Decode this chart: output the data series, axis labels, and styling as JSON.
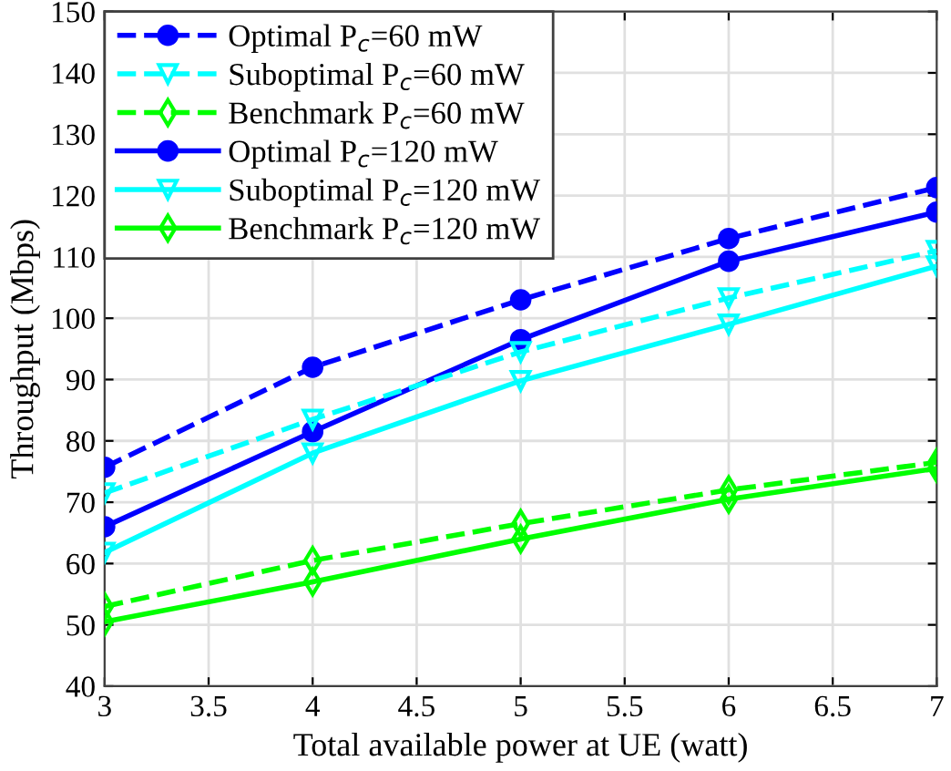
{
  "chart_data": {
    "type": "line",
    "xlabel": "Total available power at UE (watt)",
    "ylabel": "Throughput (Mbps)",
    "x": [
      3,
      4,
      5,
      6,
      7
    ],
    "xlim": [
      3,
      7
    ],
    "xticks": [
      3,
      3.5,
      4,
      4.5,
      5,
      5.5,
      6,
      6.5,
      7
    ],
    "ylim": [
      40,
      150
    ],
    "yticks": [
      40,
      50,
      60,
      70,
      80,
      90,
      100,
      110,
      120,
      130,
      140,
      150
    ],
    "grid": true,
    "legend": "top left",
    "series": [
      {
        "name": "Optimal P$_{c}$=60 mW",
        "color": "#0000ff",
        "values": [
          75.7,
          92,
          103,
          113,
          121.3
        ],
        "marker": "circle",
        "line_style": "dashed"
      },
      {
        "name": "Suboptimal P$_{c}$=60 mW",
        "color": "#00ffff",
        "values": [
          71.5,
          83.5,
          94.5,
          103.3,
          111
        ],
        "marker": "triangle",
        "line_style": "dashed"
      },
      {
        "name": "Benchmark P$_{c}$=60 mW",
        "color": "#00ff00",
        "values": [
          53,
          60.5,
          66.5,
          72,
          76.5
        ],
        "marker": "diamond",
        "line_style": "dashed"
      },
      {
        "name": "Optimal P$_{c}$=120 mW",
        "color": "#0000ff",
        "values": [
          66,
          81.5,
          96.5,
          109.3,
          117.3
        ],
        "marker": "circle",
        "line_style": "solid"
      },
      {
        "name": "Suboptimal P$_{c}$=120 mW",
        "color": "#00ffff",
        "values": [
          61.8,
          78,
          89.8,
          99,
          108.5
        ],
        "marker": "triangle",
        "line_style": "solid"
      },
      {
        "name": "Benchmark P$_{c}$=120 mW",
        "color": "#00ff00",
        "values": [
          50.5,
          57,
          64,
          70.5,
          75.5
        ],
        "marker": "diamond",
        "line_style": "solid"
      }
    ]
  }
}
